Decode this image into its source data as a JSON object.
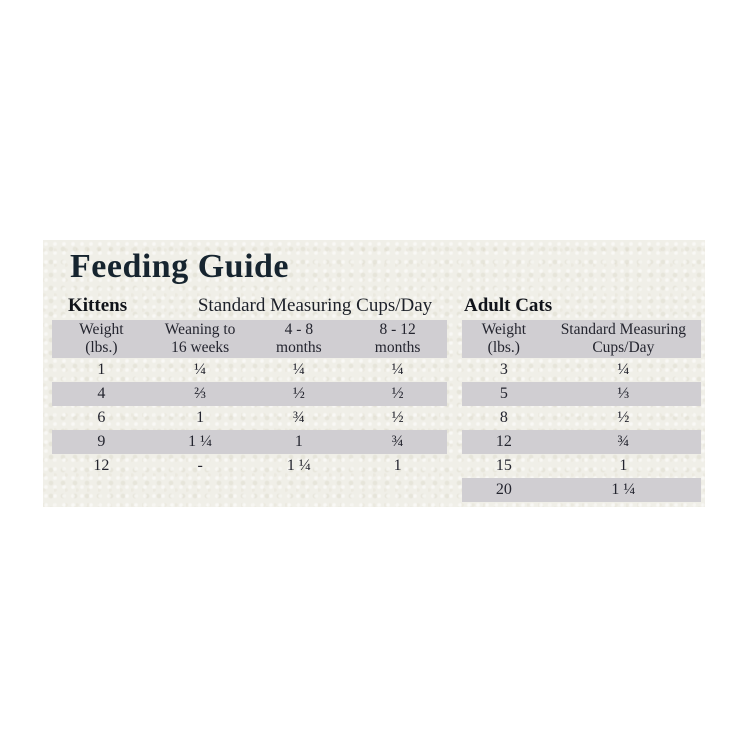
{
  "title": "Feeding Guide",
  "colors": {
    "panel_background": "#f0efe8",
    "row_stripe": "#d0ced2",
    "title_text": "#16242f",
    "body_text": "#24252f"
  },
  "kittens_table": {
    "section_label": "Kittens",
    "section_subtitle": "Standard Measuring Cups/Day",
    "columns": [
      [
        "Weight",
        "(lbs.)"
      ],
      [
        "Weaning to",
        "16 weeks"
      ],
      [
        "4 - 8",
        "months"
      ],
      [
        "8 - 12",
        "months"
      ]
    ],
    "rows": [
      [
        "1",
        "¼",
        "¼",
        "¼"
      ],
      [
        "4",
        "⅔",
        "½",
        "½"
      ],
      [
        "6",
        "1",
        "¾",
        "½"
      ],
      [
        "9",
        "1 ¼",
        "1",
        "¾"
      ],
      [
        "12",
        "-",
        "1 ¼",
        "1"
      ]
    ]
  },
  "adult_table": {
    "section_label": "Adult Cats",
    "columns": [
      [
        "Weight",
        "(lbs.)"
      ],
      [
        "Standard Measuring",
        "Cups/Day"
      ]
    ],
    "rows": [
      [
        "3",
        "¼"
      ],
      [
        "5",
        "⅓"
      ],
      [
        "8",
        "½"
      ],
      [
        "12",
        "¾"
      ],
      [
        "15",
        "1"
      ],
      [
        "20",
        "1 ¼"
      ]
    ]
  }
}
